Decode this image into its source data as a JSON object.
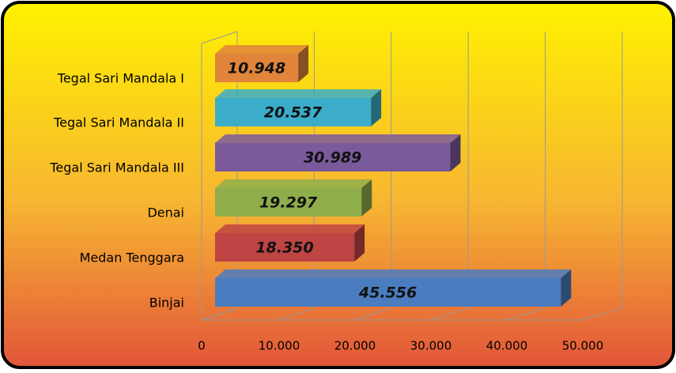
{
  "chart_data": {
    "type": "bar",
    "orientation": "horizontal",
    "categories": [
      "Tegal Sari Mandala I",
      "Tegal Sari Mandala II",
      "Tegal Sari Mandala III",
      "Denai",
      "Medan Tenggara",
      "Binjai"
    ],
    "values": [
      10948,
      20537,
      30989,
      19297,
      18350,
      45556
    ],
    "value_labels": [
      "10.948",
      "20.537",
      "30.989",
      "19.297",
      "18.350",
      "45.556"
    ],
    "colors": [
      "#e0853a",
      "#3badc9",
      "#7b5a9b",
      "#8fae4b",
      "#bf4444",
      "#4a7dc0"
    ],
    "xlim": [
      0,
      50000
    ],
    "xticks": [
      0,
      {
        "value": 10000,
        "label": "10.000"
      },
      {
        "value": 20000,
        "label": "20.000"
      },
      {
        "value": 30000,
        "label": "30.000"
      },
      {
        "value": 40000,
        "label": "40.000"
      },
      {
        "value": 50000,
        "label": "50.000"
      }
    ],
    "grid": true
  }
}
